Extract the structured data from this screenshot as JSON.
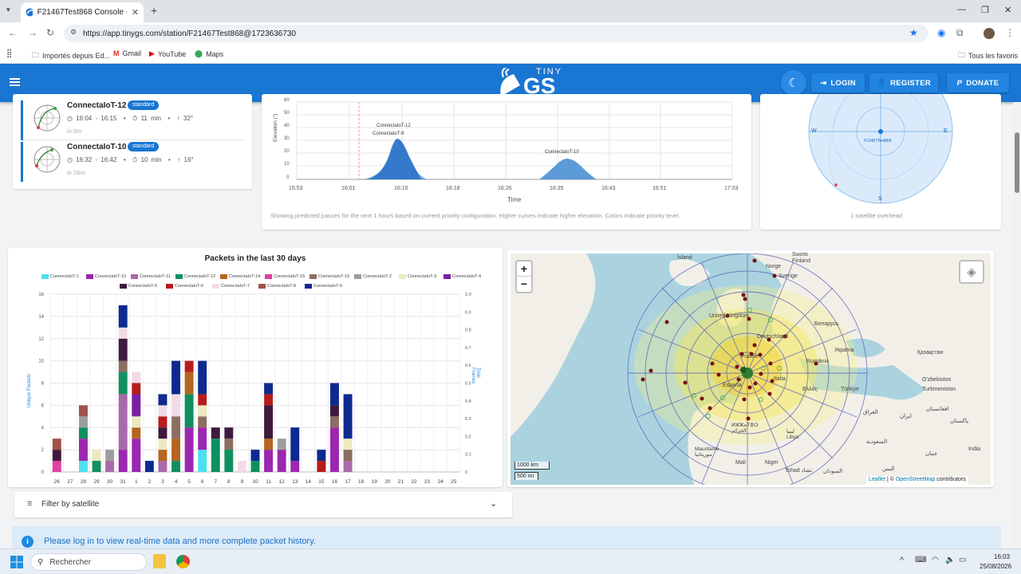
{
  "browser": {
    "tab_title": "F21467Test868 Console - TinyG",
    "url": "https://app.tinygs.com/station/F21467Test868@1723636730",
    "bookmarks": [
      "Importés depuis Ed...",
      "Gmail",
      "YouTube",
      "Maps"
    ],
    "bookmarks_right": "Tous les favoris"
  },
  "header": {
    "logo_top": "TINY",
    "logo_main": "GS",
    "login": "LOGIN",
    "register": "REGISTER",
    "donate": "DONATE"
  },
  "passes": [
    {
      "name": "ConnectaIoT-12",
      "badge": "standard",
      "time": "16:04 - 16:15",
      "duration": "11 min",
      "max_el": "32°",
      "in": "in 0m"
    },
    {
      "name": "ConnectaIoT-10",
      "badge": "standard",
      "time": "16:32 - 16:42",
      "duration": "10 min",
      "max_el": "16°",
      "in": "in 28m"
    }
  ],
  "elevation_chart": {
    "ylabel": "Elevation (°)",
    "xlabel": "Time",
    "yticks": [
      "60",
      "50",
      "40",
      "30",
      "20",
      "10",
      "0"
    ],
    "xticks": [
      "15:53",
      "16:01",
      "16:10",
      "16:18",
      "16:26",
      "16:35",
      "16:43",
      "16:51",
      "17:03"
    ],
    "labels": [
      "ConnectaIoT-12",
      "ConnectaIoT-9",
      "ConnectaIoT-10"
    ],
    "caption": "Showing predicted passes for the next 1 hours based on current priority configuration. Higher curves indicate higher elevation. Colors indicate priority level."
  },
  "polar": {
    "station": "F21467Test868",
    "w": "W",
    "e": "E",
    "s": "S",
    "caption": "1 satellite overhead"
  },
  "packets_chart": {
    "title": "Packets in the last 30 days",
    "ylabel_left": "Unique Packets",
    "ylabel_right": "Total Frames",
    "yticks_left": [
      "16",
      "14",
      "12",
      "10",
      "8",
      "6",
      "4",
      "2",
      "0"
    ],
    "yticks_right": [
      "1.0",
      "0.9",
      "0.8",
      "0.7",
      "0.6",
      "0.5",
      "0.4",
      "0.3",
      "0.2",
      "0.1",
      "0"
    ]
  },
  "chart_data": {
    "type": "bar",
    "title": "Packets in the last 30 days",
    "ylabel": "Unique Packets",
    "y2label": "Total Frames",
    "ylim": [
      0,
      16
    ],
    "y2lim": [
      0,
      1.0
    ],
    "categories": [
      "26",
      "27",
      "28",
      "29",
      "30",
      "31",
      "1",
      "2",
      "3",
      "4",
      "5",
      "6",
      "7",
      "8",
      "9",
      "10",
      "11",
      "12",
      "13",
      "14",
      "15",
      "16",
      "17",
      "18",
      "19",
      "20",
      "21",
      "22",
      "23",
      "24",
      "25"
    ],
    "series": [
      {
        "name": "ConnectaIoT-1",
        "color": "#4de0f0",
        "values": [
          0,
          0,
          1,
          0,
          0,
          0,
          0,
          0,
          0,
          0,
          0,
          2,
          0,
          0,
          0,
          0,
          0,
          0,
          0,
          0,
          0,
          0,
          0,
          0,
          0,
          0,
          0,
          0,
          0,
          0,
          0
        ]
      },
      {
        "name": "ConnectaIoT-10",
        "color": "#9c27b0",
        "values": [
          0,
          0,
          2,
          0,
          0,
          2,
          3,
          0,
          0,
          0,
          4,
          2,
          0,
          0,
          0,
          0,
          2,
          2,
          1,
          0,
          0,
          4,
          0,
          0,
          0,
          0,
          0,
          0,
          0,
          0,
          0
        ]
      },
      {
        "name": "ConnectaIoT-11",
        "color": "#a86aa8",
        "values": [
          0,
          0,
          0,
          0,
          1,
          5,
          0,
          0,
          1,
          0,
          0,
          0,
          0,
          0,
          0,
          0,
          0,
          0,
          0,
          0,
          0,
          0,
          1,
          0,
          0,
          0,
          0,
          0,
          0,
          0,
          0
        ]
      },
      {
        "name": "ConnectaIoT-12",
        "color": "#0f8f5f",
        "values": [
          0,
          0,
          1,
          1,
          0,
          2,
          0,
          0,
          0,
          1,
          3,
          0,
          3,
          2,
          0,
          1,
          0,
          0,
          0,
          0,
          0,
          0,
          0,
          0,
          0,
          0,
          0,
          0,
          0,
          0,
          0
        ]
      },
      {
        "name": "ConnectaIoT-14",
        "color": "#b5651d",
        "values": [
          0,
          0,
          0,
          0,
          0,
          0,
          1,
          0,
          1,
          2,
          2,
          0,
          0,
          0,
          0,
          0,
          1,
          0,
          0,
          0,
          0,
          0,
          0,
          0,
          0,
          0,
          0,
          0,
          0,
          0,
          0
        ]
      },
      {
        "name": "ConnectaIoT-15",
        "color": "#e040a0",
        "values": [
          1,
          0,
          0,
          0,
          0,
          0,
          0,
          0,
          0,
          0,
          0,
          0,
          0,
          0,
          0,
          0,
          0,
          0,
          0,
          0,
          0,
          0,
          0,
          0,
          0,
          0,
          0,
          0,
          0,
          0,
          0
        ]
      },
      {
        "name": "ConnectaIoT-16",
        "color": "#8d6e63",
        "values": [
          0,
          0,
          0,
          0,
          0,
          1,
          0,
          0,
          0,
          2,
          0,
          1,
          0,
          1,
          0,
          0,
          0,
          0,
          0,
          0,
          0,
          1,
          1,
          0,
          0,
          0,
          0,
          0,
          0,
          0,
          0
        ]
      },
      {
        "name": "ConnectaIoT-2",
        "color": "#9e9e9e",
        "values": [
          0,
          0,
          1,
          0,
          1,
          0,
          0,
          0,
          0,
          0,
          0,
          0,
          0,
          0,
          0,
          0,
          0,
          1,
          0,
          0,
          0,
          0,
          0,
          0,
          0,
          0,
          0,
          0,
          0,
          0,
          0
        ]
      },
      {
        "name": "ConnectaIoT-3",
        "color": "#ece9c0",
        "values": [
          0,
          0,
          0,
          1,
          0,
          0,
          1,
          0,
          1,
          0,
          0,
          1,
          0,
          0,
          0,
          0,
          0,
          0,
          0,
          0,
          0,
          0,
          1,
          0,
          0,
          0,
          0,
          0,
          0,
          0,
          0
        ]
      },
      {
        "name": "ConnectaIoT-4",
        "color": "#7b1fa2",
        "values": [
          0,
          0,
          0,
          0,
          0,
          0,
          2,
          0,
          0,
          0,
          0,
          0,
          0,
          0,
          0,
          0,
          0,
          0,
          0,
          0,
          0,
          0,
          0,
          0,
          0,
          0,
          0,
          0,
          0,
          0,
          0
        ]
      },
      {
        "name": "ConnectaIoT-5",
        "color": "#3e1a3e",
        "values": [
          1,
          0,
          0,
          0,
          0,
          2,
          0,
          0,
          1,
          0,
          0,
          0,
          1,
          1,
          0,
          0,
          3,
          0,
          0,
          0,
          0,
          1,
          0,
          0,
          0,
          0,
          0,
          0,
          0,
          0,
          0
        ]
      },
      {
        "name": "ConnectaIoT-6",
        "color": "#b71c1c",
        "values": [
          0,
          0,
          0,
          0,
          0,
          0,
          1,
          0,
          1,
          0,
          1,
          1,
          0,
          0,
          0,
          0,
          1,
          0,
          0,
          0,
          1,
          0,
          0,
          0,
          0,
          0,
          0,
          0,
          0,
          0,
          0
        ]
      },
      {
        "name": "ConnectaIoT-7",
        "color": "#f2dbe6",
        "values": [
          0,
          0,
          0,
          0,
          0,
          1,
          1,
          0,
          1,
          2,
          0,
          0,
          0,
          0,
          1,
          0,
          0,
          0,
          0,
          0,
          0,
          0,
          0,
          0,
          0,
          0,
          0,
          0,
          0,
          0,
          0
        ]
      },
      {
        "name": "ConnectaIoT-8",
        "color": "#a0524a",
        "values": [
          1,
          0,
          1,
          0,
          0,
          0,
          0,
          0,
          0,
          0,
          0,
          0,
          0,
          0,
          0,
          0,
          0,
          0,
          0,
          0,
          0,
          0,
          0,
          0,
          0,
          0,
          0,
          0,
          0,
          0,
          0
        ]
      },
      {
        "name": "ConnectaIoT-9",
        "color": "#0d2a8f",
        "values": [
          0,
          0,
          0,
          0,
          0,
          2,
          0,
          1,
          1,
          3,
          0,
          3,
          0,
          0,
          0,
          1,
          1,
          0,
          3,
          0,
          1,
          2,
          4,
          0,
          0,
          0,
          0,
          0,
          0,
          0,
          0
        ]
      }
    ]
  },
  "map": {
    "zoom_in": "+",
    "zoom_out": "−",
    "scale_km": "1000 km",
    "scale_mi": "500 mi",
    "attribution_leaflet": "Leaflet",
    "attribution_sep": " | © ",
    "attribution_osm": "OpenStreetMap",
    "attribution_tail": " contributors",
    "places": [
      "Ísland",
      "Suomi\nFinland",
      "Norge",
      "Sverige",
      "United Kingdom",
      "Беларусь",
      "Deutschland",
      "Україна",
      "Қазақстан",
      "France",
      "România",
      "España",
      "Italia",
      "Ελλάς",
      "Türkiye",
      "O'zbekiston",
      "Turkmeniston",
      "العراق",
      "ایران",
      "افغانستان",
      "پاکستان",
      "ⵍⵣⵣⴰⵢⴻⵔ\nالجزائر",
      "ليبيا\nLibya",
      "السعودية",
      "Mauritanie\nموريتانيا",
      "Mali",
      "Niger",
      "Tchad تشاد",
      "السودان",
      "عمان",
      "India",
      "اليمن"
    ]
  },
  "filter": {
    "label": "Filter by satellite"
  },
  "notice": {
    "text": "Please log in to view real-time data and more complete packet history."
  },
  "taskbar": {
    "search": "Rechercher",
    "time": "16:03",
    "date": "25/08/2026"
  }
}
